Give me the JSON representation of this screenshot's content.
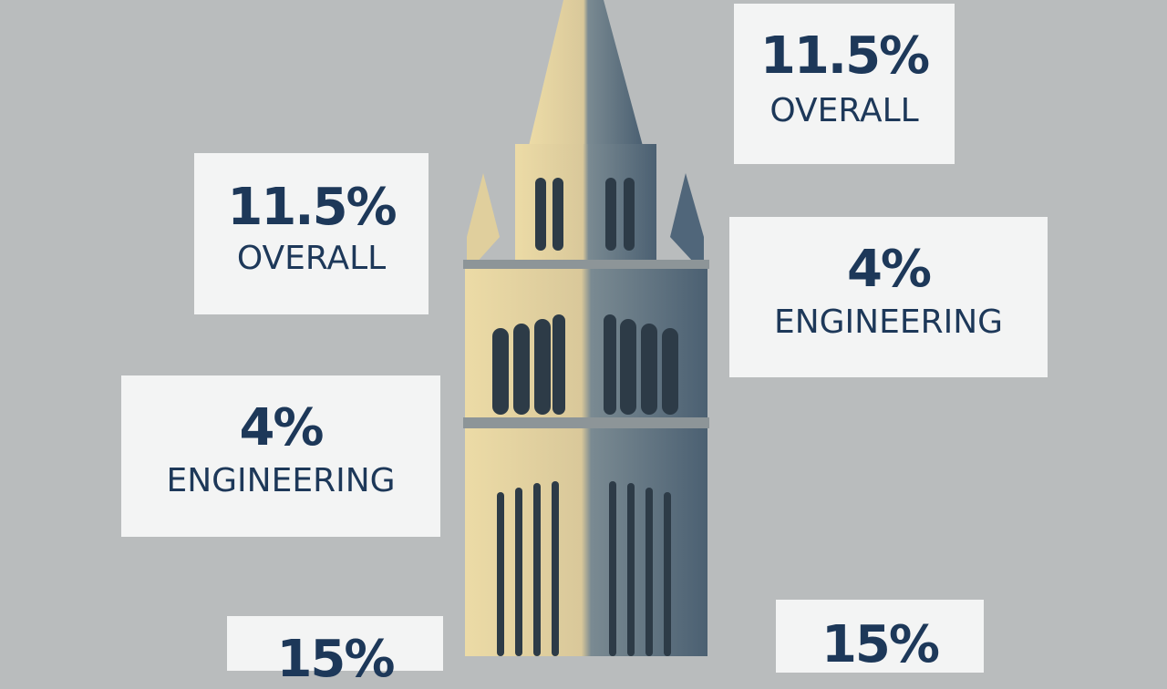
{
  "cards": [
    {
      "value": "11.5%",
      "label": "OVERALL"
    },
    {
      "value": "11.5%",
      "label": "OVERALL"
    },
    {
      "value": "4%",
      "label": "ENGINEERING"
    },
    {
      "value": "4%",
      "label": "ENGINEERING"
    },
    {
      "value": "15%"
    },
    {
      "value": "15%"
    }
  ]
}
